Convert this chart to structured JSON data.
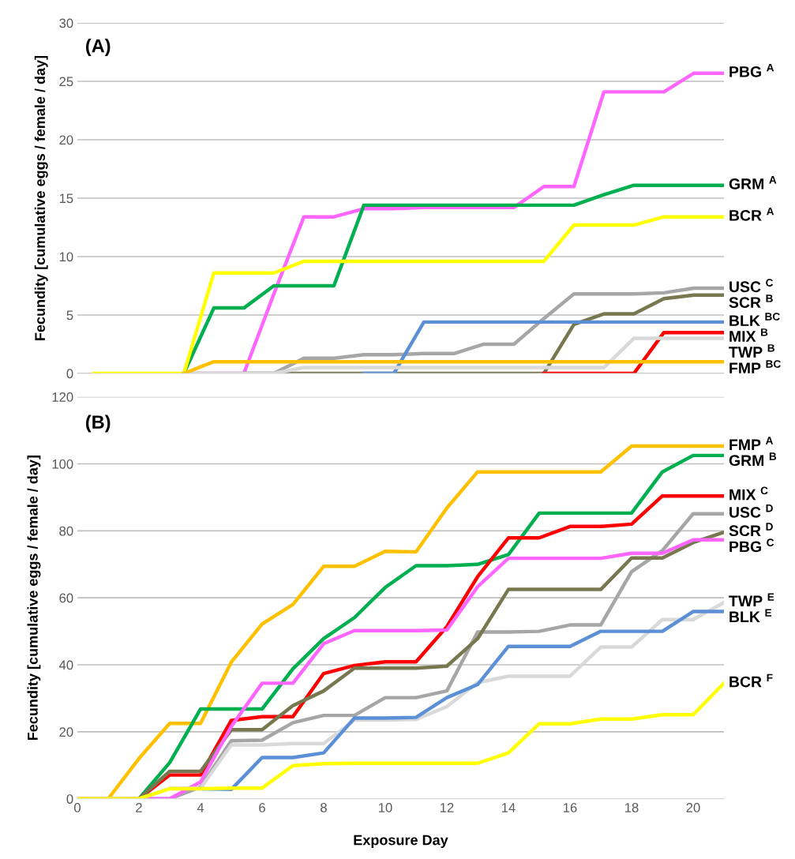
{
  "chart_data": [
    {
      "type": "line",
      "annotations": [
        "(A)"
      ],
      "ylabel": "Fecundity [cumulative eggs / female / day]",
      "categories": [
        null,
        null,
        null,
        null,
        null,
        null,
        null,
        null,
        null,
        null,
        null,
        null,
        null,
        null,
        null,
        null,
        null,
        null,
        null,
        null,
        null,
        null
      ],
      "ylim": [
        0,
        30
      ],
      "yticks": [
        0,
        5,
        10,
        15,
        20,
        25,
        30
      ],
      "grid": "y",
      "tick_labels": "y",
      "legend": false,
      "series": [
        {
          "name": "PBG $^{A}$",
          "color": "#ff66ff",
          "values": [
            null,
            null,
            null,
            0,
            0,
            0,
            6.8,
            13.4,
            13.4,
            14.1,
            14.1,
            14.2,
            14.2,
            14.2,
            14.2,
            16.0,
            16.0,
            24.1,
            24.1,
            24.1,
            25.7,
            25.7
          ]
        },
        {
          "name": "GRM $^{A}$",
          "color": "#00b050",
          "values": [
            null,
            null,
            null,
            0,
            5.6,
            5.6,
            7.5,
            7.5,
            7.5,
            14.4,
            14.4,
            14.4,
            14.4,
            14.4,
            14.4,
            14.4,
            14.4,
            15.3,
            16.1,
            16.1,
            16.1,
            16.1
          ]
        },
        {
          "name": "BCR $^{A}$",
          "color": "#ffff00",
          "values": [
            0,
            0,
            0,
            0,
            8.6,
            8.6,
            8.6,
            9.6,
            9.6,
            9.6,
            9.6,
            9.6,
            9.6,
            9.6,
            9.6,
            9.6,
            12.7,
            12.7,
            12.7,
            13.4,
            13.4,
            13.4
          ]
        },
        {
          "name": "USC $^{C}$",
          "color": "#a6a6a6",
          "values": [
            null,
            null,
            null,
            0,
            0,
            0,
            0,
            1.3,
            1.3,
            1.6,
            1.6,
            1.7,
            1.7,
            2.5,
            2.5,
            4.7,
            6.8,
            6.8,
            6.8,
            6.9,
            7.3,
            7.3
          ]
        },
        {
          "name": "SCR $^{B}$",
          "color": "#77784f",
          "values": [
            null,
            null,
            null,
            null,
            null,
            0,
            0,
            0,
            0,
            0,
            0,
            0,
            0,
            0,
            0,
            0,
            4.2,
            5.1,
            5.1,
            6.4,
            6.7,
            6.7
          ]
        },
        {
          "name": "BLK $^{BC}$",
          "color": "#5b8fd6",
          "values": [
            null,
            null,
            null,
            null,
            null,
            null,
            null,
            null,
            null,
            0,
            0,
            4.4,
            4.4,
            4.4,
            4.4,
            4.4,
            4.4,
            4.4,
            4.4,
            4.4,
            4.4,
            4.4
          ]
        },
        {
          "name": "MIX $^{B}$",
          "color": "#ff0000",
          "values": [
            null,
            null,
            null,
            null,
            null,
            null,
            null,
            null,
            null,
            null,
            null,
            null,
            null,
            null,
            null,
            0,
            0,
            0,
            0,
            3.5,
            3.5,
            3.5
          ]
        },
        {
          "name": "TWP $^{B}$",
          "color": "#d9d9d9",
          "values": [
            null,
            null,
            null,
            0,
            0,
            0,
            0,
            0.5,
            0.5,
            0.5,
            0.5,
            0.5,
            0.5,
            0.5,
            0.5,
            0.5,
            0.5,
            0.5,
            3.0,
            3.0,
            3.0,
            3.0
          ]
        },
        {
          "name": "FMP $^{BC}$",
          "color": "#ffc000",
          "values": [
            null,
            null,
            null,
            0,
            1.0,
            1.0,
            1.0,
            1.0,
            1.0,
            1.0,
            1.0,
            1.0,
            1.0,
            1.0,
            1.0,
            1.0,
            1.0,
            1.0,
            1.0,
            1.0,
            1.0,
            1.0
          ]
        }
      ]
    },
    {
      "type": "line",
      "annotations": [
        "(B)"
      ],
      "ylabel": "Fecundity [cumulative eggs / female / day]",
      "xlabel": "Exposure Day",
      "x": [
        0,
        1,
        2,
        3,
        4,
        5,
        6,
        7,
        8,
        9,
        10,
        11,
        12,
        13,
        14,
        15,
        16,
        17,
        18,
        19,
        20,
        21
      ],
      "xlim": [
        0,
        21
      ],
      "xticks": [
        0,
        2,
        4,
        6,
        8,
        10,
        12,
        14,
        16,
        18,
        20
      ],
      "ylim": [
        0,
        120
      ],
      "yticks": [
        0,
        20,
        40,
        60,
        80,
        100,
        120
      ],
      "grid": "y",
      "legend": false,
      "series": [
        {
          "name": "FMP $^{A}$",
          "color": "#ffc000",
          "values": [
            null,
            0,
            12,
            22.5,
            22.5,
            40.8,
            52.2,
            58.0,
            69.4,
            69.4,
            73.9,
            73.7,
            86.8,
            97.6,
            97.6,
            97.6,
            97.6,
            97.6,
            105.3,
            105.3,
            105.3,
            105.3
          ]
        },
        {
          "name": "GRM $^{B}$",
          "color": "#00b050",
          "values": [
            0,
            0,
            0,
            10.8,
            26.8,
            26.8,
            26.8,
            38.8,
            47.8,
            54.1,
            63.1,
            69.6,
            69.6,
            70.0,
            72.9,
            85.3,
            85.3,
            85.3,
            85.3,
            97.6,
            102.5,
            102.5
          ]
        },
        {
          "name": "MIX $^{C}$",
          "color": "#ff0000",
          "values": [
            0,
            0,
            0,
            7.1,
            7.1,
            23.4,
            24.5,
            24.5,
            37.4,
            39.8,
            40.9,
            40.9,
            51.4,
            66.3,
            77.9,
            77.9,
            81.3,
            81.3,
            82.0,
            90.4,
            90.4,
            90.4
          ]
        },
        {
          "name": "USC $^{D}$",
          "color": "#a6a6a6",
          "values": [
            0,
            0,
            0,
            0,
            3.5,
            17.3,
            17.5,
            22.7,
            24.9,
            24.9,
            30.2,
            30.2,
            32.2,
            49.8,
            49.8,
            50.0,
            51.9,
            51.9,
            67.8,
            74.1,
            85.1,
            85.1
          ]
        },
        {
          "name": "SCR $^{D}$",
          "color": "#77784f",
          "values": [
            0,
            0,
            0,
            8.2,
            8.2,
            20.6,
            20.6,
            27.8,
            32.2,
            39.0,
            39.0,
            39.0,
            39.6,
            47.8,
            62.5,
            62.5,
            62.5,
            62.5,
            71.9,
            71.9,
            76.5,
            79.6
          ]
        },
        {
          "name": "PBG $^{C}$",
          "color": "#ff66ff",
          "values": [
            0,
            0,
            0,
            0,
            5,
            21.6,
            34.5,
            34.5,
            46.3,
            50.2,
            50.2,
            50.2,
            50.4,
            63.3,
            71.8,
            71.8,
            71.8,
            71.8,
            73.3,
            73.3,
            77.3,
            77.3
          ]
        },
        {
          "name": "TWP $^{E}$",
          "color": "#d9d9d9",
          "values": [
            0,
            0,
            0,
            3.1,
            3.1,
            16.1,
            16.1,
            16.5,
            16.5,
            23.5,
            23.5,
            23.7,
            27.5,
            34.7,
            36.6,
            36.6,
            36.6,
            45.3,
            45.3,
            53.5,
            53.5,
            58.6
          ]
        },
        {
          "name": "BLK $^{E}$",
          "color": "#5b8fd6",
          "values": [
            null,
            null,
            null,
            null,
            3,
            2.8,
            12.3,
            12.3,
            13.7,
            24.1,
            24.1,
            24.3,
            30.2,
            34.1,
            45.5,
            45.5,
            45.5,
            50.0,
            50.0,
            50.0,
            55.9,
            55.9
          ]
        },
        {
          "name": "BCR $^{F}$",
          "color": "#ffff00",
          "values": [
            0,
            0,
            0,
            3.0,
            3.0,
            3.2,
            3.2,
            9.9,
            10.5,
            10.6,
            10.6,
            10.6,
            10.6,
            10.6,
            13.7,
            22.4,
            22.4,
            23.8,
            23.8,
            25.1,
            25.1,
            34.5
          ]
        }
      ]
    }
  ]
}
